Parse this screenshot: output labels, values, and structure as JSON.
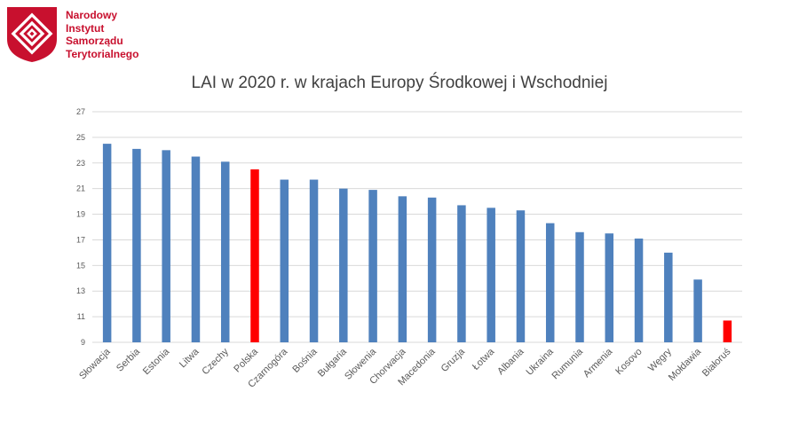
{
  "header": {
    "org_name_lines": [
      "Narodowy",
      "Instytut",
      "Samorządu",
      "Terytorialnego"
    ]
  },
  "colors": {
    "brand": "#c8102e",
    "bar_default": "#4f81bd",
    "bar_highlight": "#ff0000",
    "grid": "#d9d9d9"
  },
  "chart_data": {
    "type": "bar",
    "title": "LAI w 2020 r. w krajach Europy Środkowej i Wschodniej",
    "xlabel": "",
    "ylabel": "",
    "ylim": [
      9,
      27
    ],
    "yticks": [
      9,
      11,
      13,
      15,
      17,
      19,
      21,
      23,
      25,
      27
    ],
    "grid": true,
    "categories": [
      "Słowacja",
      "Serbia",
      "Estonia",
      "Litwa",
      "Czechy",
      "Polska",
      "Czarnogóra",
      "Bośnia",
      "Bułgaria",
      "Słowenia",
      "Chorwacja",
      "Macedonia",
      "Gruzja",
      "Łotwa",
      "Albania",
      "Ukraina",
      "Rumunia",
      "Armenia",
      "Kosovo",
      "Węgry",
      "Mołdawia",
      "Białoruś"
    ],
    "values": [
      24.5,
      24.1,
      24.0,
      23.5,
      23.1,
      22.5,
      21.7,
      21.7,
      21.0,
      20.9,
      20.4,
      20.3,
      19.7,
      19.5,
      19.3,
      18.3,
      17.6,
      17.5,
      17.1,
      16.0,
      13.9,
      10.7
    ],
    "highlighted": [
      "Polska",
      "Białoruś"
    ]
  }
}
